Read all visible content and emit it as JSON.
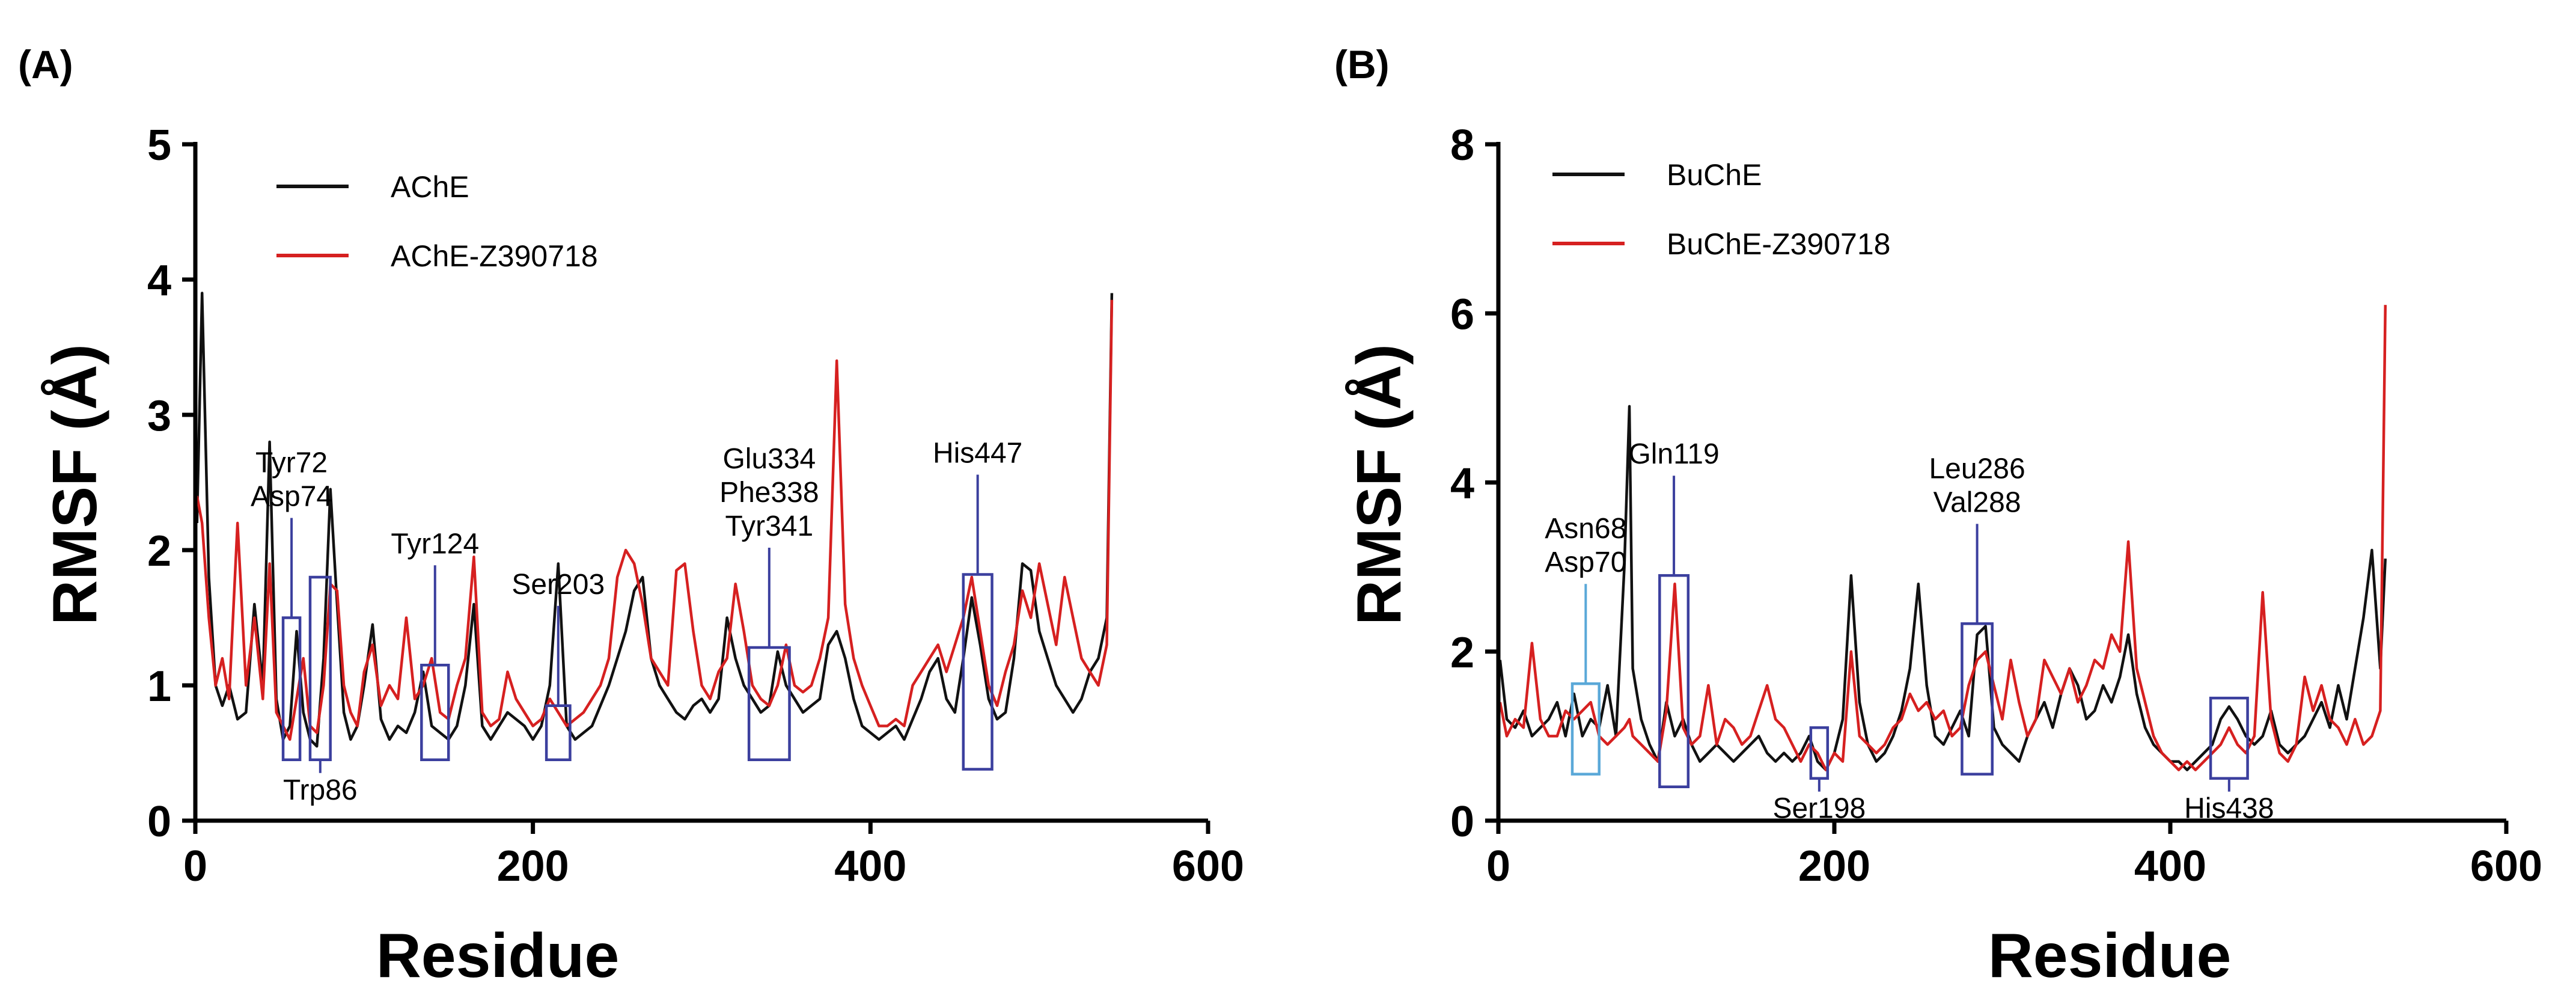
{
  "chart_data": [
    {
      "type": "line",
      "panel_label": "(A)",
      "title": "",
      "xlabel": "Residue",
      "ylabel": "RMSF (Å)",
      "xlim": [
        0,
        600
      ],
      "ylim": [
        0,
        5
      ],
      "xticks": [
        0,
        200,
        400,
        600
      ],
      "yticks": [
        0,
        1,
        2,
        3,
        4,
        5
      ],
      "legend_position": "top-left",
      "series": [
        {
          "name": "AChE",
          "color": "#111111",
          "x": [
            1,
            4,
            8,
            12,
            16,
            20,
            25,
            30,
            35,
            40,
            44,
            48,
            52,
            56,
            60,
            64,
            68,
            72,
            76,
            80,
            84,
            88,
            92,
            96,
            100,
            105,
            110,
            115,
            120,
            125,
            130,
            135,
            140,
            145,
            150,
            155,
            160,
            165,
            170,
            175,
            180,
            185,
            190,
            195,
            200,
            205,
            210,
            215,
            220,
            225,
            230,
            235,
            240,
            245,
            250,
            255,
            260,
            265,
            270,
            275,
            280,
            285,
            290,
            295,
            300,
            305,
            310,
            315,
            320,
            325,
            330,
            335,
            340,
            345,
            350,
            355,
            360,
            365,
            370,
            375,
            380,
            385,
            390,
            395,
            400,
            405,
            410,
            415,
            420,
            425,
            430,
            435,
            440,
            445,
            450,
            455,
            460,
            465,
            470,
            475,
            480,
            485,
            490,
            495,
            500,
            505,
            510,
            515,
            520,
            525,
            530,
            535,
            540,
            543
          ],
          "values": [
            2.2,
            3.9,
            1.8,
            1.0,
            0.85,
            1.0,
            0.75,
            0.8,
            1.6,
            1.0,
            2.8,
            0.9,
            0.6,
            0.7,
            1.4,
            0.8,
            0.6,
            0.55,
            1.2,
            2.45,
            1.6,
            0.8,
            0.6,
            0.7,
            1.0,
            1.45,
            0.75,
            0.6,
            0.7,
            0.65,
            0.8,
            1.1,
            0.7,
            0.65,
            0.6,
            0.7,
            1.0,
            1.6,
            0.7,
            0.6,
            0.7,
            0.8,
            0.75,
            0.7,
            0.6,
            0.7,
            1.0,
            1.9,
            0.7,
            0.6,
            0.65,
            0.7,
            0.85,
            1.0,
            1.2,
            1.4,
            1.7,
            1.8,
            1.2,
            1.0,
            0.9,
            0.8,
            0.75,
            0.85,
            0.9,
            0.8,
            0.9,
            1.5,
            1.2,
            1.0,
            0.9,
            0.8,
            0.85,
            1.25,
            1.0,
            0.9,
            0.8,
            0.85,
            0.9,
            1.3,
            1.4,
            1.2,
            0.9,
            0.7,
            0.65,
            0.6,
            0.65,
            0.7,
            0.6,
            0.75,
            0.9,
            1.1,
            1.2,
            0.9,
            0.8,
            1.2,
            1.65,
            1.3,
            0.9,
            0.75,
            0.8,
            1.2,
            1.9,
            1.85,
            1.4,
            1.2,
            1.0,
            0.9,
            0.8,
            0.9,
            1.1,
            1.2,
            1.5,
            3.9
          ]
        },
        {
          "name": "AChE-Z390718",
          "color": "#d62020",
          "x": [
            1,
            4,
            8,
            12,
            16,
            20,
            25,
            30,
            35,
            40,
            44,
            48,
            52,
            56,
            60,
            64,
            68,
            72,
            76,
            80,
            84,
            88,
            92,
            96,
            100,
            105,
            110,
            115,
            120,
            125,
            130,
            135,
            140,
            145,
            150,
            155,
            160,
            165,
            170,
            175,
            180,
            185,
            190,
            195,
            200,
            205,
            210,
            215,
            220,
            225,
            230,
            235,
            240,
            245,
            250,
            255,
            260,
            265,
            270,
            275,
            280,
            285,
            290,
            295,
            300,
            305,
            310,
            315,
            320,
            325,
            330,
            335,
            340,
            345,
            350,
            355,
            360,
            365,
            370,
            375,
            380,
            385,
            390,
            395,
            400,
            405,
            410,
            415,
            420,
            425,
            430,
            435,
            440,
            445,
            450,
            455,
            460,
            465,
            470,
            475,
            480,
            485,
            490,
            495,
            500,
            505,
            510,
            515,
            520,
            525,
            530,
            535,
            540,
            543
          ],
          "values": [
            2.4,
            2.2,
            1.5,
            1.0,
            1.2,
            0.9,
            2.2,
            1.0,
            1.5,
            0.9,
            1.9,
            0.8,
            0.7,
            0.6,
            0.9,
            1.2,
            0.7,
            0.65,
            1.0,
            1.75,
            1.7,
            1.0,
            0.8,
            0.7,
            1.1,
            1.3,
            0.85,
            1.0,
            0.9,
            1.5,
            0.9,
            1.0,
            1.2,
            0.8,
            0.75,
            1.0,
            1.2,
            1.95,
            0.8,
            0.7,
            0.75,
            1.1,
            0.9,
            0.8,
            0.7,
            0.75,
            0.9,
            0.8,
            0.7,
            0.75,
            0.8,
            0.9,
            1.0,
            1.2,
            1.8,
            2.0,
            1.9,
            1.6,
            1.2,
            1.1,
            1.0,
            1.85,
            1.9,
            1.4,
            1.0,
            0.9,
            1.1,
            1.2,
            1.75,
            1.4,
            1.0,
            0.9,
            0.85,
            1.0,
            1.3,
            1.0,
            0.95,
            1.0,
            1.2,
            1.5,
            3.4,
            1.6,
            1.2,
            1.0,
            0.85,
            0.7,
            0.7,
            0.75,
            0.7,
            1.0,
            1.1,
            1.2,
            1.3,
            1.1,
            1.3,
            1.5,
            1.8,
            1.4,
            1.0,
            0.85,
            1.1,
            1.3,
            1.7,
            1.5,
            1.9,
            1.6,
            1.3,
            1.8,
            1.5,
            1.2,
            1.1,
            1.0,
            1.3,
            3.85
          ]
        }
      ],
      "annotations": [
        {
          "lines": [
            "Tyr72",
            "Asp74"
          ],
          "box_x": [
            52,
            62
          ],
          "box_y": [
            0.45,
            1.5
          ]
        },
        {
          "lines": [
            "Trp86"
          ],
          "box_x": [
            68,
            80
          ],
          "box_y": [
            0.45,
            1.8
          ],
          "below": true
        },
        {
          "lines": [
            "Tyr124"
          ],
          "box_x": [
            134,
            150
          ],
          "box_y": [
            0.45,
            1.15
          ]
        },
        {
          "lines": [
            "Ser203"
          ],
          "box_x": [
            208,
            222
          ],
          "box_y": [
            0.45,
            0.85
          ]
        },
        {
          "lines": [
            "Glu334",
            "Phe338",
            "Tyr341"
          ],
          "box_x": [
            328,
            352
          ],
          "box_y": [
            0.45,
            1.28
          ]
        },
        {
          "lines": [
            "His447"
          ],
          "box_x": [
            455,
            472
          ],
          "box_y": [
            0.38,
            1.82
          ]
        }
      ]
    },
    {
      "type": "line",
      "panel_label": "(B)",
      "title": "",
      "xlabel": "Residue",
      "ylabel": "RMSF (Å)",
      "xlim": [
        0,
        600
      ],
      "ylim": [
        0,
        8
      ],
      "xticks": [
        0,
        200,
        400,
        600
      ],
      "yticks": [
        0,
        2,
        4,
        6,
        8
      ],
      "legend_position": "top-left",
      "series": [
        {
          "name": "BuChE",
          "color": "#111111",
          "x": [
            1,
            5,
            10,
            15,
            20,
            25,
            30,
            35,
            40,
            45,
            50,
            55,
            60,
            65,
            70,
            75,
            78,
            80,
            85,
            90,
            95,
            100,
            105,
            110,
            115,
            120,
            125,
            130,
            135,
            140,
            145,
            150,
            155,
            160,
            165,
            170,
            175,
            180,
            185,
            190,
            195,
            200,
            205,
            210,
            215,
            220,
            225,
            230,
            235,
            240,
            245,
            250,
            255,
            260,
            265,
            270,
            275,
            280,
            285,
            290,
            295,
            300,
            305,
            310,
            315,
            320,
            325,
            330,
            335,
            340,
            345,
            350,
            355,
            360,
            365,
            370,
            375,
            380,
            385,
            390,
            395,
            400,
            405,
            410,
            415,
            420,
            425,
            430,
            435,
            440,
            445,
            450,
            455,
            460,
            465,
            470,
            475,
            480,
            485,
            490,
            495,
            500,
            505,
            510,
            515,
            520,
            525,
            528
          ],
          "values": [
            1.9,
            1.2,
            1.1,
            1.3,
            1.0,
            1.1,
            1.2,
            1.4,
            1.0,
            1.5,
            1.0,
            1.2,
            1.1,
            1.6,
            1.0,
            3.0,
            4.9,
            1.8,
            1.2,
            0.9,
            0.7,
            1.4,
            1.0,
            1.2,
            0.9,
            0.7,
            0.8,
            0.9,
            0.8,
            0.7,
            0.8,
            0.9,
            1.0,
            0.8,
            0.7,
            0.8,
            0.7,
            0.8,
            1.0,
            0.7,
            0.6,
            0.8,
            1.2,
            2.9,
            1.4,
            0.9,
            0.7,
            0.8,
            1.0,
            1.3,
            1.8,
            2.8,
            1.6,
            1.0,
            0.9,
            1.1,
            1.3,
            1.0,
            2.2,
            2.3,
            1.1,
            0.9,
            0.8,
            0.7,
            1.0,
            1.2,
            1.4,
            1.1,
            1.5,
            1.8,
            1.6,
            1.2,
            1.3,
            1.6,
            1.4,
            1.7,
            2.2,
            1.5,
            1.1,
            0.9,
            0.8,
            0.7,
            0.7,
            0.6,
            0.7,
            0.8,
            0.9,
            1.2,
            1.35,
            1.2,
            1.0,
            0.9,
            1.0,
            1.3,
            0.9,
            0.8,
            0.9,
            1.0,
            1.2,
            1.4,
            1.1,
            1.6,
            1.2,
            1.8,
            2.4,
            3.2,
            1.8,
            3.1
          ]
        },
        {
          "name": "BuChE-Z390718",
          "color": "#d62020",
          "x": [
            1,
            5,
            10,
            15,
            20,
            25,
            30,
            35,
            40,
            45,
            50,
            55,
            60,
            65,
            70,
            75,
            78,
            80,
            85,
            90,
            95,
            100,
            105,
            110,
            115,
            120,
            125,
            130,
            135,
            140,
            145,
            150,
            155,
            160,
            165,
            170,
            175,
            180,
            185,
            190,
            195,
            200,
            205,
            210,
            215,
            220,
            225,
            230,
            235,
            240,
            245,
            250,
            255,
            260,
            265,
            270,
            275,
            280,
            285,
            290,
            295,
            300,
            305,
            310,
            315,
            320,
            325,
            330,
            335,
            340,
            345,
            350,
            355,
            360,
            365,
            370,
            375,
            380,
            385,
            390,
            395,
            400,
            405,
            410,
            415,
            420,
            425,
            430,
            435,
            440,
            445,
            450,
            455,
            460,
            465,
            470,
            475,
            480,
            485,
            490,
            495,
            500,
            505,
            510,
            515,
            520,
            525,
            528
          ],
          "values": [
            1.4,
            1.0,
            1.2,
            1.1,
            2.1,
            1.2,
            1.0,
            1.0,
            1.3,
            1.2,
            1.3,
            1.4,
            1.0,
            0.9,
            1.0,
            1.1,
            1.2,
            1.0,
            0.9,
            0.8,
            0.7,
            1.3,
            2.8,
            1.1,
            0.9,
            1.0,
            1.6,
            0.9,
            1.2,
            1.1,
            0.9,
            1.0,
            1.3,
            1.6,
            1.2,
            1.1,
            0.9,
            0.7,
            0.9,
            0.8,
            0.6,
            0.8,
            0.7,
            2.0,
            1.0,
            0.9,
            0.8,
            0.9,
            1.1,
            1.2,
            1.5,
            1.3,
            1.4,
            1.2,
            1.3,
            1.0,
            1.1,
            1.6,
            1.9,
            2.0,
            1.6,
            1.2,
            1.9,
            1.4,
            1.0,
            1.2,
            1.9,
            1.7,
            1.5,
            1.8,
            1.4,
            1.6,
            1.9,
            1.8,
            2.2,
            2.0,
            3.3,
            1.8,
            1.4,
            1.0,
            0.8,
            0.7,
            0.6,
            0.7,
            0.6,
            0.7,
            0.8,
            0.9,
            1.1,
            0.9,
            0.8,
            1.0,
            2.7,
            1.2,
            0.8,
            0.7,
            0.9,
            1.7,
            1.3,
            1.6,
            1.2,
            1.1,
            0.9,
            1.2,
            0.9,
            1.0,
            1.3,
            6.1
          ]
        }
      ],
      "annotations": [
        {
          "lines": [
            "Asn68",
            "Asp70"
          ],
          "box_x": [
            44,
            60
          ],
          "box_y": [
            0.55,
            1.62
          ],
          "color": "#5aa8d8"
        },
        {
          "lines": [
            "Gln119"
          ],
          "box_x": [
            96,
            113
          ],
          "box_y": [
            0.4,
            2.9
          ]
        },
        {
          "lines": [
            "Ser198"
          ],
          "box_x": [
            186,
            196
          ],
          "box_y": [
            0.5,
            1.1
          ],
          "below": true
        },
        {
          "lines": [
            "Leu286",
            "Val288"
          ],
          "box_x": [
            276,
            294
          ],
          "box_y": [
            0.55,
            2.33
          ]
        },
        {
          "lines": [
            "His438"
          ],
          "box_x": [
            424,
            446
          ],
          "box_y": [
            0.5,
            1.45
          ],
          "below": true
        }
      ]
    }
  ]
}
